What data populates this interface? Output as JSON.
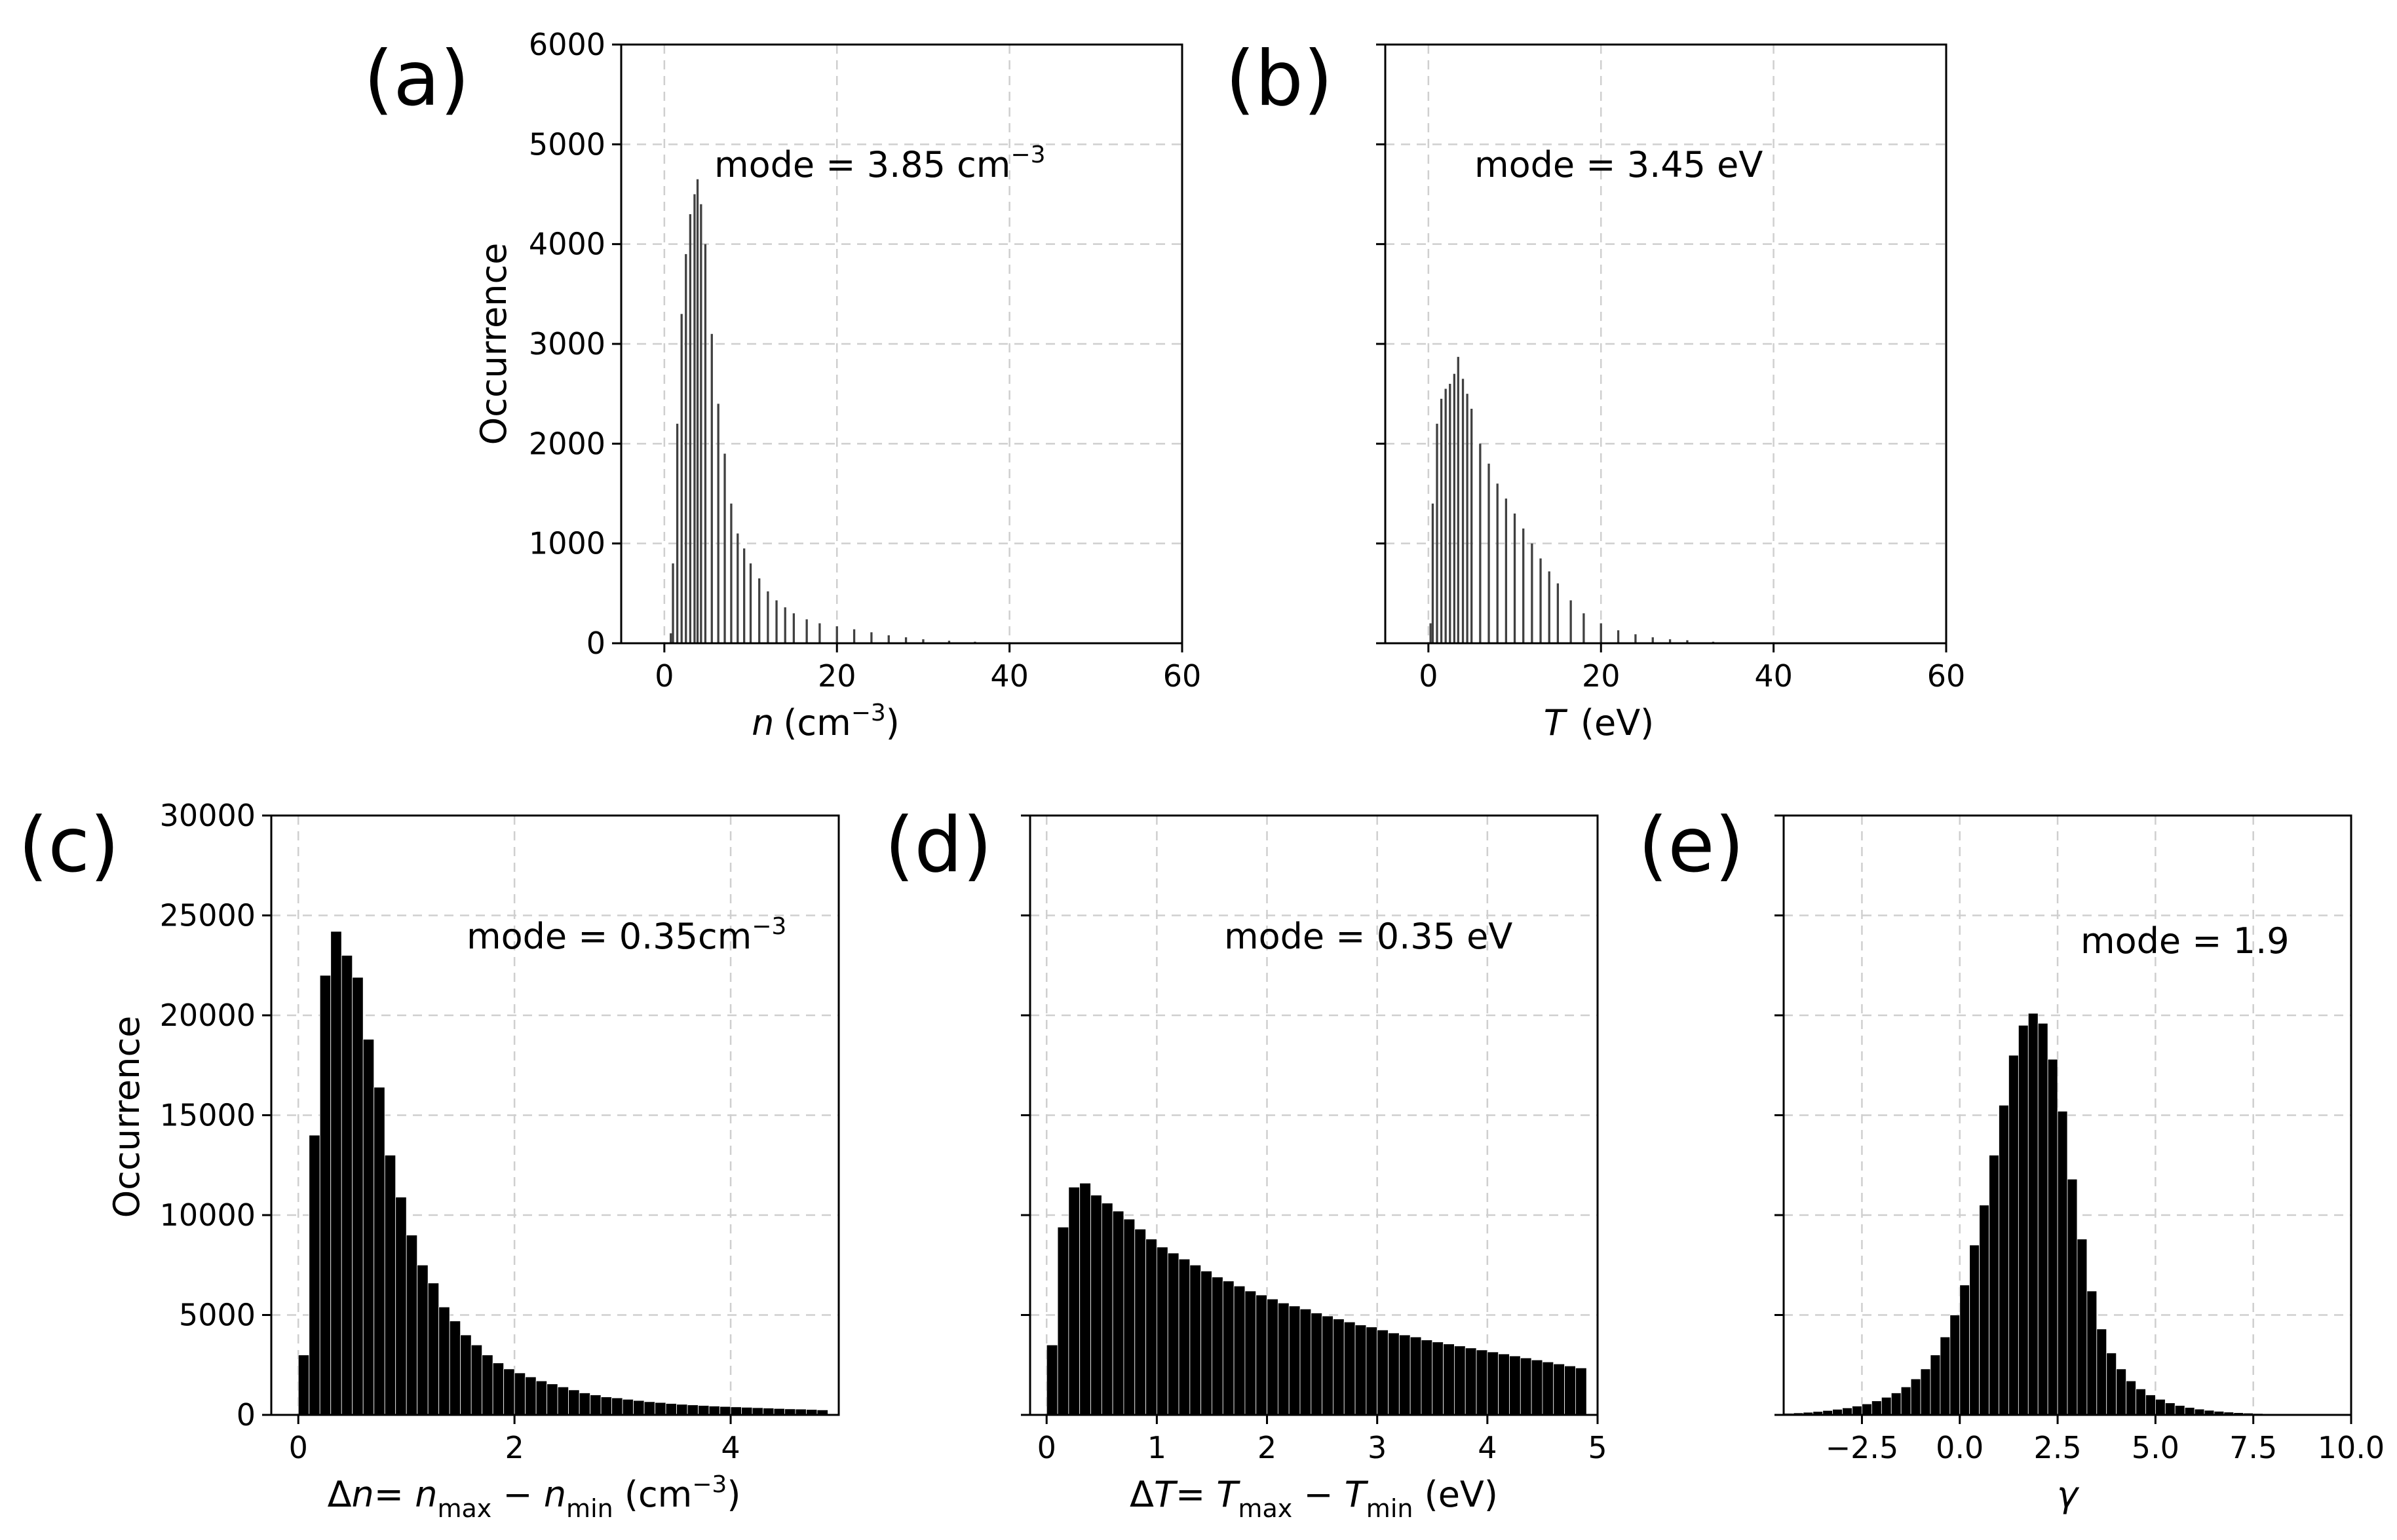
{
  "chart_data": [
    {
      "id": "a",
      "panel_label": "(a)",
      "type": "bar",
      "bar_color": "#404040",
      "xlabel_main": "n",
      "xlabel_rest": "(cm",
      "xlabel_sup": "−3",
      "xlabel_close": ")",
      "ylabel": "Occurrence",
      "xlim": [
        -5,
        60
      ],
      "ylim": [
        0,
        6000
      ],
      "xticks": [
        0,
        20,
        40,
        60
      ],
      "xtick_labels": [
        "0",
        "20",
        "40",
        "60"
      ],
      "yticks": [
        0,
        1000,
        2000,
        3000,
        4000,
        5000,
        6000
      ],
      "ytick_labels": [
        "0",
        "1000",
        "2000",
        "3000",
        "4000",
        "5000",
        "6000"
      ],
      "show_ytick_labels": true,
      "annotation": "mode = 3.85 cm",
      "annotation_sup": "−3",
      "bin_width": 0.25,
      "x": [
        0.75,
        1.0,
        1.5,
        2.0,
        2.5,
        3.0,
        3.5,
        3.85,
        4.25,
        4.75,
        5.5,
        6.25,
        7.0,
        7.75,
        8.5,
        9.25,
        10.0,
        11.0,
        12.0,
        13.0,
        14.0,
        15.0,
        16.5,
        18.0,
        20.0,
        22.0,
        24.0,
        26.0,
        28.0,
        30.0,
        33.0,
        36.0,
        40.0
      ],
      "values": [
        100,
        800,
        2200,
        3300,
        3900,
        4300,
        4500,
        4650,
        4400,
        4000,
        3100,
        2400,
        1900,
        1400,
        1100,
        950,
        800,
        650,
        520,
        430,
        360,
        300,
        240,
        200,
        170,
        140,
        110,
        80,
        60,
        40,
        25,
        15,
        5
      ]
    },
    {
      "id": "b",
      "panel_label": "(b)",
      "type": "bar",
      "bar_color": "#404040",
      "xlabel_main": "T",
      "xlabel_rest": " (eV)",
      "xlabel_sup": "",
      "xlabel_close": "",
      "ylabel": "",
      "xlim": [
        -5,
        60
      ],
      "ylim": [
        0,
        6000
      ],
      "xticks": [
        0,
        20,
        40,
        60
      ],
      "xtick_labels": [
        "0",
        "20",
        "40",
        "60"
      ],
      "yticks": [
        0,
        1000,
        2000,
        3000,
        4000,
        5000,
        6000
      ],
      "ytick_labels": [],
      "show_ytick_labels": false,
      "annotation": "mode = 3.45 eV",
      "annotation_sup": "",
      "bin_width": 0.25,
      "x": [
        0.25,
        0.5,
        1.0,
        1.5,
        2.0,
        2.5,
        3.0,
        3.45,
        4.0,
        4.5,
        5.0,
        6.0,
        7.0,
        8.0,
        9.0,
        10.0,
        11.0,
        12.0,
        13.0,
        14.0,
        15.0,
        16.5,
        18.0,
        20.0,
        22.0,
        24.0,
        26.0,
        28.0,
        30.0,
        33.0,
        36.0,
        40.0
      ],
      "values": [
        200,
        1400,
        2200,
        2450,
        2550,
        2600,
        2700,
        2870,
        2650,
        2500,
        2350,
        2000,
        1800,
        1600,
        1450,
        1300,
        1150,
        1000,
        850,
        720,
        600,
        430,
        300,
        200,
        130,
        90,
        60,
        40,
        30,
        15,
        8,
        3
      ]
    },
    {
      "id": "c",
      "panel_label": "(c)",
      "type": "bar",
      "bar_color": "#000000",
      "xlabel_text": "Δn= n_max − n_min (cm⁻³)",
      "ylabel": "Occurrence",
      "xlim": [
        -0.25,
        5.0
      ],
      "ylim": [
        0,
        30000
      ],
      "xticks": [
        0,
        2,
        4
      ],
      "xtick_labels": [
        "0",
        "2",
        "4"
      ],
      "yticks": [
        0,
        5000,
        10000,
        15000,
        20000,
        25000,
        30000
      ],
      "ytick_labels": [
        "0",
        "5000",
        "10000",
        "15000",
        "20000",
        "25000",
        "30000"
      ],
      "show_ytick_labels": true,
      "annotation": "mode = 0.35cm",
      "annotation_sup": "−3",
      "bin_width": 0.1,
      "x": [
        0.05,
        0.15,
        0.25,
        0.35,
        0.45,
        0.55,
        0.65,
        0.75,
        0.85,
        0.95,
        1.05,
        1.15,
        1.25,
        1.35,
        1.45,
        1.55,
        1.65,
        1.75,
        1.85,
        1.95,
        2.05,
        2.15,
        2.25,
        2.35,
        2.45,
        2.55,
        2.65,
        2.75,
        2.85,
        2.95,
        3.05,
        3.15,
        3.25,
        3.35,
        3.45,
        3.55,
        3.65,
        3.75,
        3.85,
        3.95,
        4.05,
        4.15,
        4.25,
        4.35,
        4.45,
        4.55,
        4.65,
        4.75,
        4.85
      ],
      "values": [
        3000,
        14000,
        22000,
        24200,
        23000,
        21900,
        18800,
        16400,
        13000,
        10900,
        9000,
        7500,
        6600,
        5400,
        4700,
        4000,
        3500,
        3000,
        2600,
        2300,
        2100,
        1900,
        1700,
        1550,
        1400,
        1250,
        1100,
        1000,
        900,
        850,
        780,
        720,
        660,
        620,
        570,
        530,
        500,
        470,
        440,
        420,
        400,
        380,
        360,
        340,
        320,
        300,
        290,
        270,
        250
      ]
    },
    {
      "id": "d",
      "panel_label": "(d)",
      "type": "bar",
      "bar_color": "#000000",
      "xlabel_text": "ΔT= T_max − T_min (eV)",
      "ylabel": "",
      "xlim": [
        -0.15,
        5.0
      ],
      "ylim": [
        0,
        30000
      ],
      "xticks": [
        0,
        1,
        2,
        3,
        4,
        5
      ],
      "xtick_labels": [
        "0",
        "1",
        "2",
        "3",
        "4",
        "5"
      ],
      "yticks": [
        0,
        5000,
        10000,
        15000,
        20000,
        25000,
        30000
      ],
      "ytick_labels": [],
      "show_ytick_labels": false,
      "annotation": "mode = 0.35 eV",
      "annotation_sup": "",
      "bin_width": 0.1,
      "x": [
        0.05,
        0.15,
        0.25,
        0.35,
        0.45,
        0.55,
        0.65,
        0.75,
        0.85,
        0.95,
        1.05,
        1.15,
        1.25,
        1.35,
        1.45,
        1.55,
        1.65,
        1.75,
        1.85,
        1.95,
        2.05,
        2.15,
        2.25,
        2.35,
        2.45,
        2.55,
        2.65,
        2.75,
        2.85,
        2.95,
        3.05,
        3.15,
        3.25,
        3.35,
        3.45,
        3.55,
        3.65,
        3.75,
        3.85,
        3.95,
        4.05,
        4.15,
        4.25,
        4.35,
        4.45,
        4.55,
        4.65,
        4.75,
        4.85
      ],
      "values": [
        3500,
        9400,
        11400,
        11600,
        11000,
        10600,
        10200,
        9800,
        9300,
        8800,
        8400,
        8100,
        7800,
        7500,
        7200,
        6900,
        6700,
        6450,
        6200,
        6000,
        5800,
        5600,
        5450,
        5300,
        5100,
        4950,
        4800,
        4650,
        4500,
        4400,
        4250,
        4100,
        4000,
        3900,
        3750,
        3650,
        3550,
        3450,
        3350,
        3250,
        3150,
        3050,
        2950,
        2850,
        2750,
        2650,
        2550,
        2450,
        2350
      ]
    },
    {
      "id": "e",
      "panel_label": "(e)",
      "type": "bar",
      "bar_color": "#000000",
      "xlabel_text": "γ",
      "ylabel": "",
      "xlim": [
        -4.5,
        10.0
      ],
      "ylim": [
        0,
        30000
      ],
      "xticks": [
        -2.5,
        0.0,
        2.5,
        5.0,
        7.5,
        10.0
      ],
      "xtick_labels": [
        "−2.5",
        "0.0",
        "2.5",
        "5.0",
        "7.5",
        "10.0"
      ],
      "yticks": [
        0,
        5000,
        10000,
        15000,
        20000,
        25000,
        30000
      ],
      "ytick_labels": [],
      "show_ytick_labels": false,
      "annotation": "mode = 1.9",
      "annotation_sup": "",
      "bin_width": 0.25,
      "x": [
        -4.375,
        -4.125,
        -3.875,
        -3.625,
        -3.375,
        -3.125,
        -2.875,
        -2.625,
        -2.375,
        -2.125,
        -1.875,
        -1.625,
        -1.375,
        -1.125,
        -0.875,
        -0.625,
        -0.375,
        -0.125,
        0.125,
        0.375,
        0.625,
        0.875,
        1.125,
        1.375,
        1.625,
        1.875,
        2.125,
        2.375,
        2.625,
        2.875,
        3.125,
        3.375,
        3.625,
        3.875,
        4.125,
        4.375,
        4.625,
        4.875,
        5.125,
        5.375,
        5.625,
        5.875,
        6.125,
        6.375,
        6.625,
        6.875,
        7.125,
        7.375,
        7.625,
        7.875,
        8.125,
        8.375,
        8.625,
        8.875,
        9.125,
        9.375,
        9.625,
        9.875
      ],
      "values": [
        80,
        100,
        130,
        170,
        220,
        280,
        350,
        440,
        550,
        700,
        880,
        1100,
        1400,
        1800,
        2300,
        3000,
        3900,
        5000,
        6500,
        8500,
        10500,
        13000,
        15500,
        18000,
        19500,
        20100,
        19600,
        17800,
        15200,
        11800,
        8800,
        6200,
        4300,
        3100,
        2300,
        1700,
        1300,
        1000,
        780,
        600,
        470,
        370,
        290,
        230,
        180,
        140,
        110,
        90,
        70,
        55,
        45,
        35,
        28,
        22,
        17,
        13,
        10,
        8
      ]
    }
  ]
}
